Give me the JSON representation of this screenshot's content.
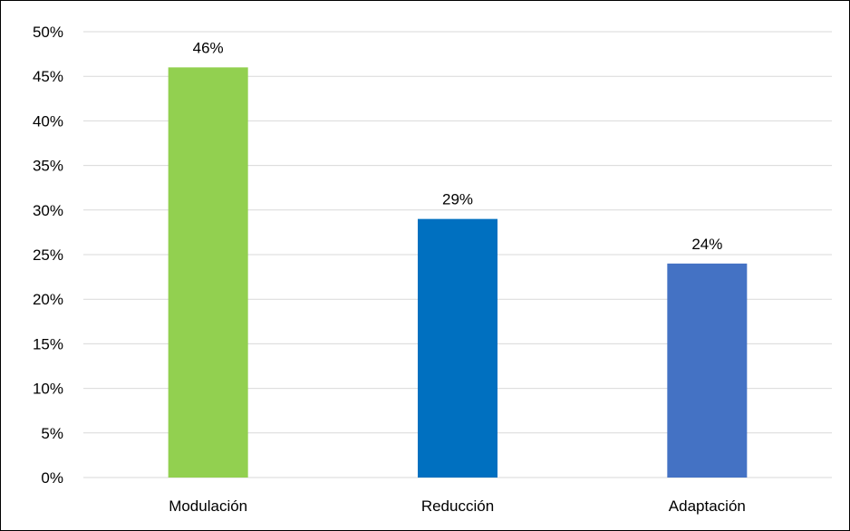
{
  "chart_data": {
    "type": "bar",
    "categories": [
      "Modulación",
      "Reducción",
      "Adaptación"
    ],
    "values": [
      46,
      29,
      24
    ],
    "data_labels": [
      "46%",
      "29%",
      "24%"
    ],
    "colors": [
      "#92d050",
      "#0070c0",
      "#4472c4"
    ],
    "ylim": [
      0,
      50
    ],
    "yticks": [
      0,
      5,
      10,
      15,
      20,
      25,
      30,
      35,
      40,
      45,
      50
    ],
    "ytick_labels": [
      "0%",
      "5%",
      "10%",
      "15%",
      "20%",
      "25%",
      "30%",
      "35%",
      "40%",
      "45%",
      "50%"
    ],
    "grid": true,
    "gridline_color": "#d9d9d9",
    "title": "",
    "xlabel": "",
    "ylabel": "",
    "legend": "none"
  }
}
